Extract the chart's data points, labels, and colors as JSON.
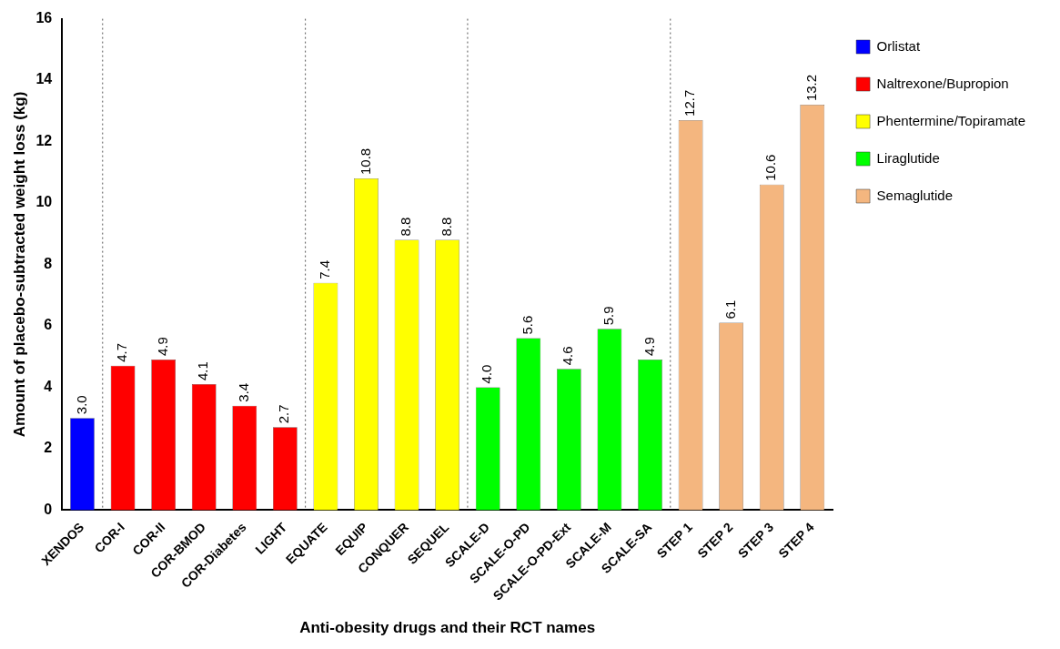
{
  "chart_data": {
    "type": "bar",
    "xlabel": "Anti-obesity drugs and their RCT names",
    "ylabel": "Amount of placebo-subtracted weight loss (kg)",
    "categories": [
      "XENDOS",
      "COR-I",
      "COR-II",
      "COR-BMOD",
      "COR-Diabetes",
      "LIGHT",
      "EQUATE",
      "EQUIP",
      "CONQUER",
      "SEQUEL",
      "SCALE-D",
      "SCALE-O-PD",
      "SCALE-O-PD-Ext",
      "SCALE-M",
      "SCALE-SA",
      "STEP 1",
      "STEP 2",
      "STEP 3",
      "STEP 4"
    ],
    "series": [
      {
        "name": "Orlistat",
        "color": "#0000ff",
        "values": [
          3.0,
          null,
          null,
          null,
          null,
          null,
          null,
          null,
          null,
          null,
          null,
          null,
          null,
          null,
          null,
          null,
          null,
          null,
          null
        ],
        "value_labels": [
          "3.0",
          null,
          null,
          null,
          null,
          null,
          null,
          null,
          null,
          null,
          null,
          null,
          null,
          null,
          null,
          null,
          null,
          null,
          null
        ]
      },
      {
        "name": "Naltrexone/Bupropion",
        "color": "#ff0000",
        "values": [
          null,
          4.7,
          4.9,
          4.1,
          3.4,
          2.7,
          null,
          null,
          null,
          null,
          null,
          null,
          null,
          null,
          null,
          null,
          null,
          null,
          null
        ],
        "value_labels": [
          null,
          "4.7",
          "4.9",
          "4.1",
          "3.4",
          "2.7",
          null,
          null,
          null,
          null,
          null,
          null,
          null,
          null,
          null,
          null,
          null,
          null,
          null
        ]
      },
      {
        "name": "Phentermine/Topiramate",
        "color": "#ffff00",
        "values": [
          null,
          null,
          null,
          null,
          null,
          null,
          7.4,
          10.8,
          8.8,
          8.8,
          null,
          null,
          null,
          null,
          null,
          null,
          null,
          null,
          null
        ],
        "value_labels": [
          null,
          null,
          null,
          null,
          null,
          null,
          "7.4",
          "10.8",
          "8.8",
          "8.8",
          null,
          null,
          null,
          null,
          null,
          null,
          null,
          null,
          null
        ]
      },
      {
        "name": "Liraglutide",
        "color": "#00ff00",
        "values": [
          null,
          null,
          null,
          null,
          null,
          null,
          null,
          null,
          null,
          null,
          4.0,
          5.6,
          4.6,
          5.9,
          4.9,
          null,
          null,
          null,
          null
        ],
        "value_labels": [
          null,
          null,
          null,
          null,
          null,
          null,
          null,
          null,
          null,
          null,
          "4.0",
          "5.6",
          "4.6",
          "5.9",
          "4.9",
          null,
          null,
          null,
          null
        ]
      },
      {
        "name": "Semaglutide",
        "color": "#f4b67f",
        "values": [
          null,
          null,
          null,
          null,
          null,
          null,
          null,
          null,
          null,
          null,
          null,
          null,
          null,
          null,
          null,
          12.7,
          6.1,
          10.6,
          13.2
        ],
        "value_labels": [
          null,
          null,
          null,
          null,
          null,
          null,
          null,
          null,
          null,
          null,
          null,
          null,
          null,
          null,
          null,
          "12.7",
          "6.1",
          "10.6",
          "13.2"
        ]
      }
    ],
    "ylim": [
      0,
      16
    ],
    "yticks": [
      0,
      2,
      4,
      6,
      8,
      10,
      12,
      14,
      16
    ],
    "grid": false,
    "legend": "right"
  }
}
